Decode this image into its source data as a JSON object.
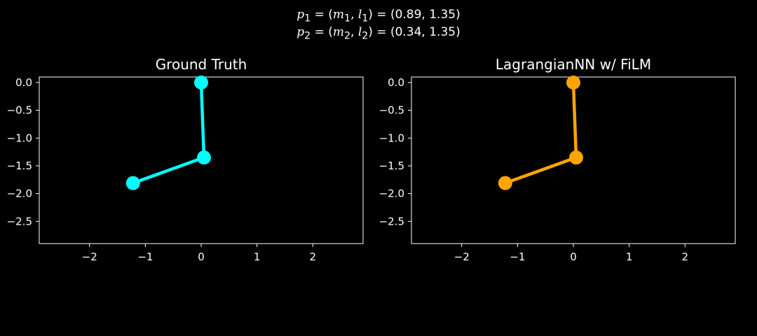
{
  "suptitle": {
    "line1": {
      "lhs_var": "p",
      "lhs_sub": "1",
      "m": "m",
      "m_sub": "1",
      "l": "l",
      "l_sub": "1",
      "value": "(0.89, 1.35)"
    },
    "line2": {
      "lhs_var": "p",
      "lhs_sub": "2",
      "m": "m",
      "m_sub": "2",
      "l": "l",
      "l_sub": "2",
      "value": "(0.34, 1.35)"
    }
  },
  "colors": {
    "background": "#000000",
    "axes": "#ffffff",
    "ground_truth": "#00ffff",
    "prediction": "#ffa500"
  },
  "chart_data": [
    {
      "type": "line",
      "title": "Ground Truth",
      "xlabel": "",
      "ylabel": "",
      "xlim": [
        -2.9,
        2.9
      ],
      "ylim": [
        -2.9,
        0.1
      ],
      "xticks": [
        "−2",
        "−1",
        "0",
        "1",
        "2"
      ],
      "yticks": [
        "0.0",
        "−0.5",
        "−1.0",
        "−1.5",
        "−2.0",
        "−2.5"
      ],
      "grid": false,
      "series": [
        {
          "name": "pendulum",
          "color": "#00ffff",
          "x": [
            0.0,
            0.05,
            -1.22
          ],
          "y": [
            0.0,
            -1.35,
            -1.81
          ]
        }
      ]
    },
    {
      "type": "line",
      "title": "LagrangianNN w/ FiLM",
      "xlabel": "",
      "ylabel": "",
      "xlim": [
        -2.9,
        2.9
      ],
      "ylim": [
        -2.9,
        0.1
      ],
      "xticks": [
        "−2",
        "−1",
        "0",
        "1",
        "2"
      ],
      "yticks": [
        "0.0",
        "−0.5",
        "−1.0",
        "−1.5",
        "−2.0",
        "−2.5"
      ],
      "grid": false,
      "series": [
        {
          "name": "pendulum",
          "color": "#ffa500",
          "x": [
            0.0,
            0.05,
            -1.22
          ],
          "y": [
            0.0,
            -1.35,
            -1.81
          ]
        }
      ]
    }
  ]
}
